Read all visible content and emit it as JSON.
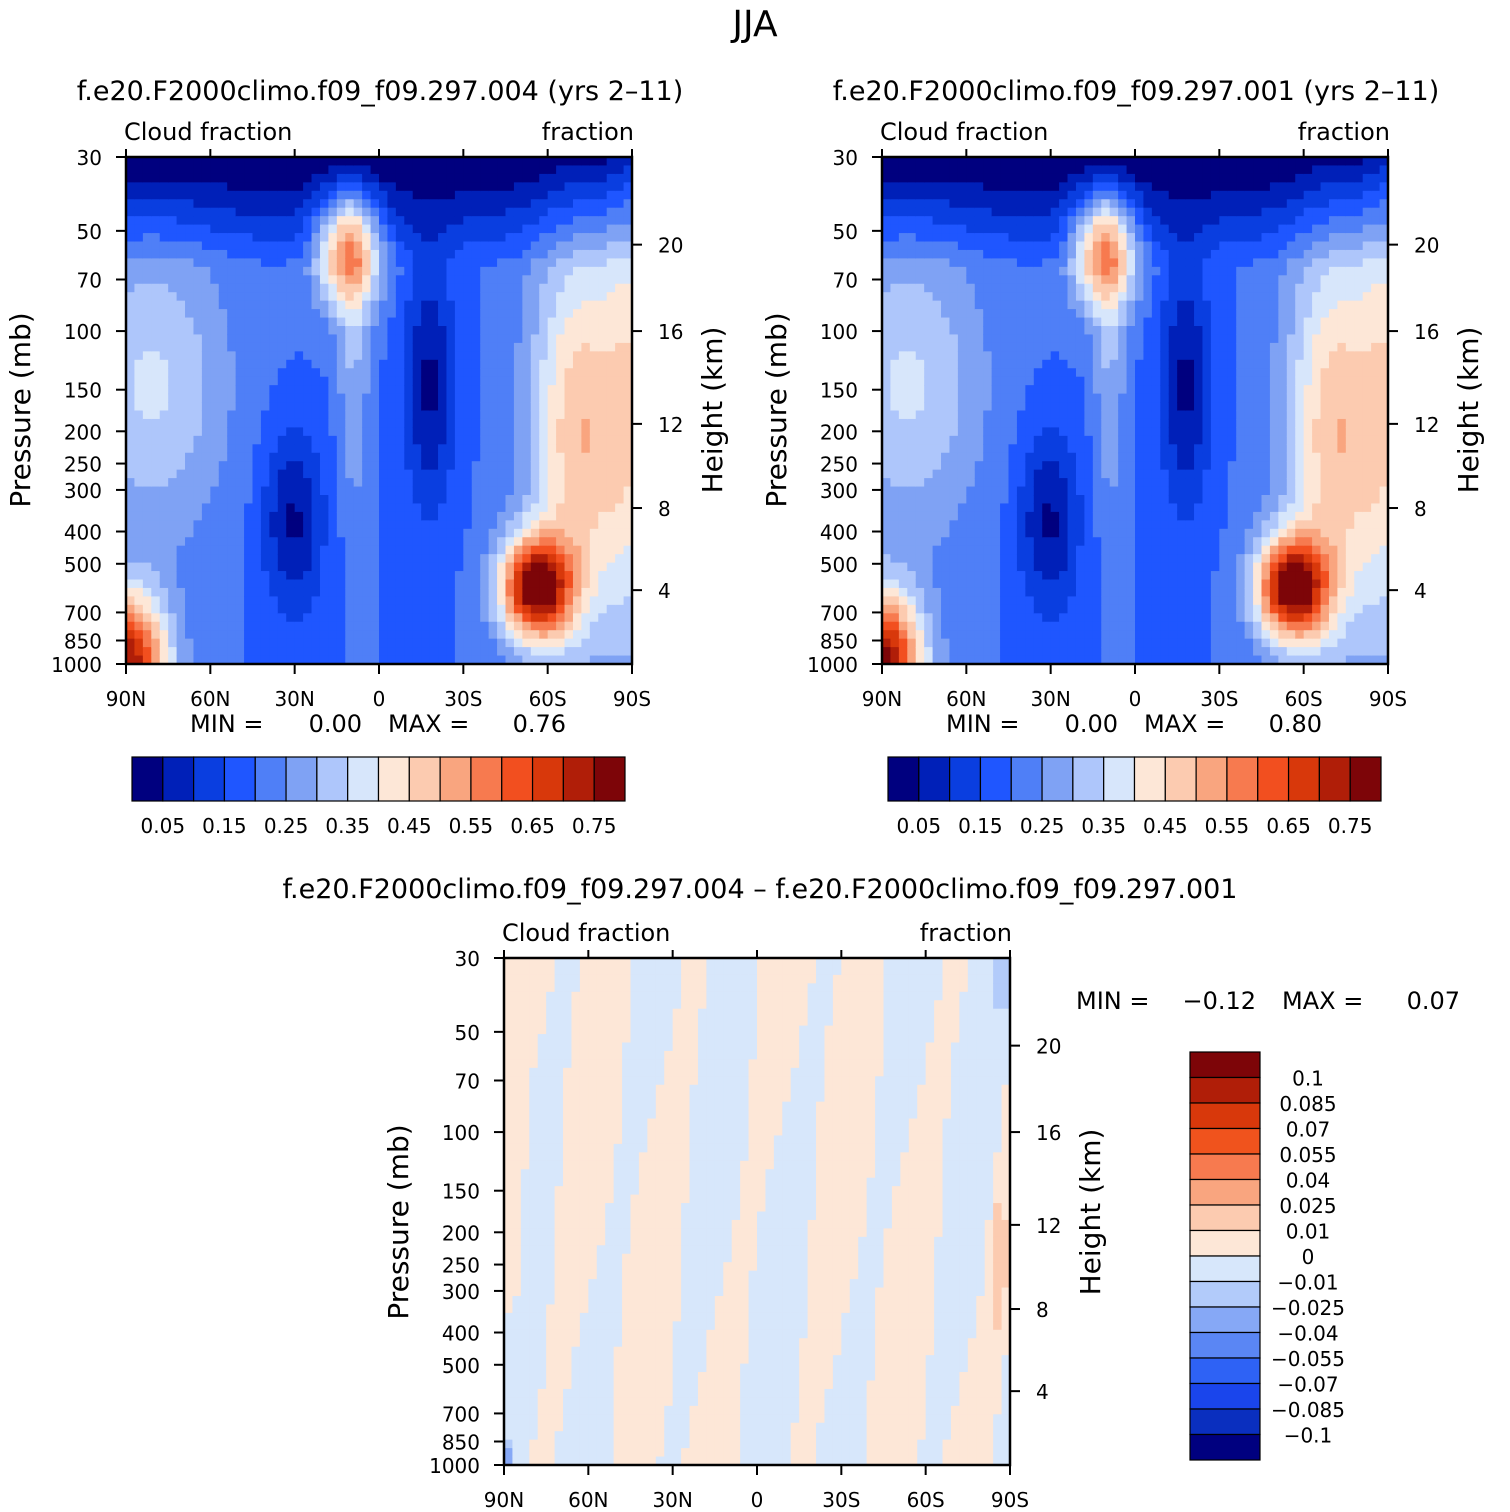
{
  "figure": {
    "title": "JJA"
  },
  "panel_top_left": {
    "case_title": "f.e20.F2000climo.f09_f09.297.004 (yrs 2–11)",
    "left_label": "Cloud fraction",
    "right_label": "fraction",
    "y_left_title": "Pressure (mb)",
    "y_right_title": "Height (km)",
    "min_label": "MIN =",
    "min_value": "0.00",
    "max_label": "MAX =",
    "max_value": "0.76"
  },
  "panel_top_right": {
    "case_title": "f.e20.F2000climo.f09_f09.297.001 (yrs 2–11)",
    "left_label": "Cloud fraction",
    "right_label": "fraction",
    "y_left_title": "Pressure (mb)",
    "y_right_title": "Height (km)",
    "min_label": "MIN =",
    "min_value": "0.00",
    "max_label": "MAX =",
    "max_value": "0.80"
  },
  "panel_bottom": {
    "case_title": "f.e20.F2000climo.f09_f09.297.004 – f.e20.F2000climo.f09_f09.297.001",
    "left_label": "Cloud fraction",
    "right_label": "fraction",
    "y_left_title": "Pressure (mb)",
    "y_right_title": "Height (km)",
    "min_label": "MIN =",
    "min_value": "−0.12",
    "max_label": "MAX =",
    "max_value": "0.07"
  },
  "colors": {
    "main_palette": [
      "#00007f",
      "#0020b8",
      "#0a3ee0",
      "#1f56ff",
      "#4f7ff7",
      "#7fa2f4",
      "#aec6fb",
      "#d7e6fb",
      "#fde7d7",
      "#fccbb0",
      "#f9a57f",
      "#f77a4f",
      "#f24f1f",
      "#d8380b",
      "#b01e08",
      "#7d0508"
    ],
    "diff_palette": [
      "#00007f",
      "#0a2fbf",
      "#1a45ec",
      "#2e62f5",
      "#5a86f4",
      "#86a8f6",
      "#b2cbfa",
      "#d7e7fb",
      "#fde7d7",
      "#fccbb0",
      "#f9a57f",
      "#f77a4f",
      "#f0531d",
      "#d8380b",
      "#b01e08",
      "#7d0508"
    ]
  },
  "chart_data": [
    {
      "type": "heatmap",
      "name": "Cloud fraction, case 004",
      "x_ticks": [
        "90N",
        "60N",
        "30N",
        "0",
        "30S",
        "60S",
        "90S"
      ],
      "x_range": [
        90,
        -90
      ],
      "y_ticks_pressure_mb": [
        30,
        50,
        70,
        100,
        150,
        200,
        250,
        300,
        400,
        500,
        700,
        850,
        1000
      ],
      "y_tick_labels": [
        "30",
        "50",
        "70",
        "100",
        "150",
        "200",
        "250",
        "300",
        "400",
        "500",
        "700",
        "850",
        "1000"
      ],
      "y_scale": "log-pressure",
      "y_right_ticks_km": [
        "20",
        "16",
        "12",
        "8",
        "4"
      ],
      "colorbar_levels": [
        0.05,
        0.1,
        0.15,
        0.2,
        0.25,
        0.3,
        0.35,
        0.4,
        0.45,
        0.5,
        0.55,
        0.6,
        0.65,
        0.7,
        0.75
      ],
      "colorbar_labels": [
        "0.05",
        "0.15",
        "0.25",
        "0.35",
        "0.45",
        "0.55",
        "0.65",
        "0.75"
      ],
      "min": 0.0,
      "max": 0.76
    },
    {
      "type": "heatmap",
      "name": "Cloud fraction, case 001",
      "x_ticks": [
        "90N",
        "60N",
        "30N",
        "0",
        "30S",
        "60S",
        "90S"
      ],
      "x_range": [
        90,
        -90
      ],
      "y_ticks_pressure_mb": [
        30,
        50,
        70,
        100,
        150,
        200,
        250,
        300,
        400,
        500,
        700,
        850,
        1000
      ],
      "y_tick_labels": [
        "30",
        "50",
        "70",
        "100",
        "150",
        "200",
        "250",
        "300",
        "400",
        "500",
        "700",
        "850",
        "1000"
      ],
      "y_scale": "log-pressure",
      "y_right_ticks_km": [
        "20",
        "16",
        "12",
        "8",
        "4"
      ],
      "colorbar_levels": [
        0.05,
        0.1,
        0.15,
        0.2,
        0.25,
        0.3,
        0.35,
        0.4,
        0.45,
        0.5,
        0.55,
        0.6,
        0.65,
        0.7,
        0.75
      ],
      "colorbar_labels": [
        "0.05",
        "0.15",
        "0.25",
        "0.35",
        "0.45",
        "0.55",
        "0.65",
        "0.75"
      ],
      "min": 0.0,
      "max": 0.8
    },
    {
      "type": "heatmap",
      "name": "Difference 004 - 001",
      "x_ticks": [
        "90N",
        "60N",
        "30N",
        "0",
        "30S",
        "60S",
        "90S"
      ],
      "x_range": [
        90,
        -90
      ],
      "y_ticks_pressure_mb": [
        30,
        50,
        70,
        100,
        150,
        200,
        250,
        300,
        400,
        500,
        700,
        850,
        1000
      ],
      "y_tick_labels": [
        "30",
        "50",
        "70",
        "100",
        "150",
        "200",
        "250",
        "300",
        "400",
        "500",
        "700",
        "850",
        "1000"
      ],
      "y_scale": "log-pressure",
      "y_right_ticks_km": [
        "20",
        "16",
        "12",
        "8",
        "4"
      ],
      "colorbar_labels": [
        "0.1",
        "0.085",
        "0.07",
        "0.055",
        "0.04",
        "0.025",
        "0.01",
        "0",
        "−0.01",
        "−0.025",
        "−0.04",
        "−0.055",
        "−0.07",
        "−0.085",
        "−0.1"
      ],
      "min": -0.12,
      "max": 0.07
    }
  ]
}
